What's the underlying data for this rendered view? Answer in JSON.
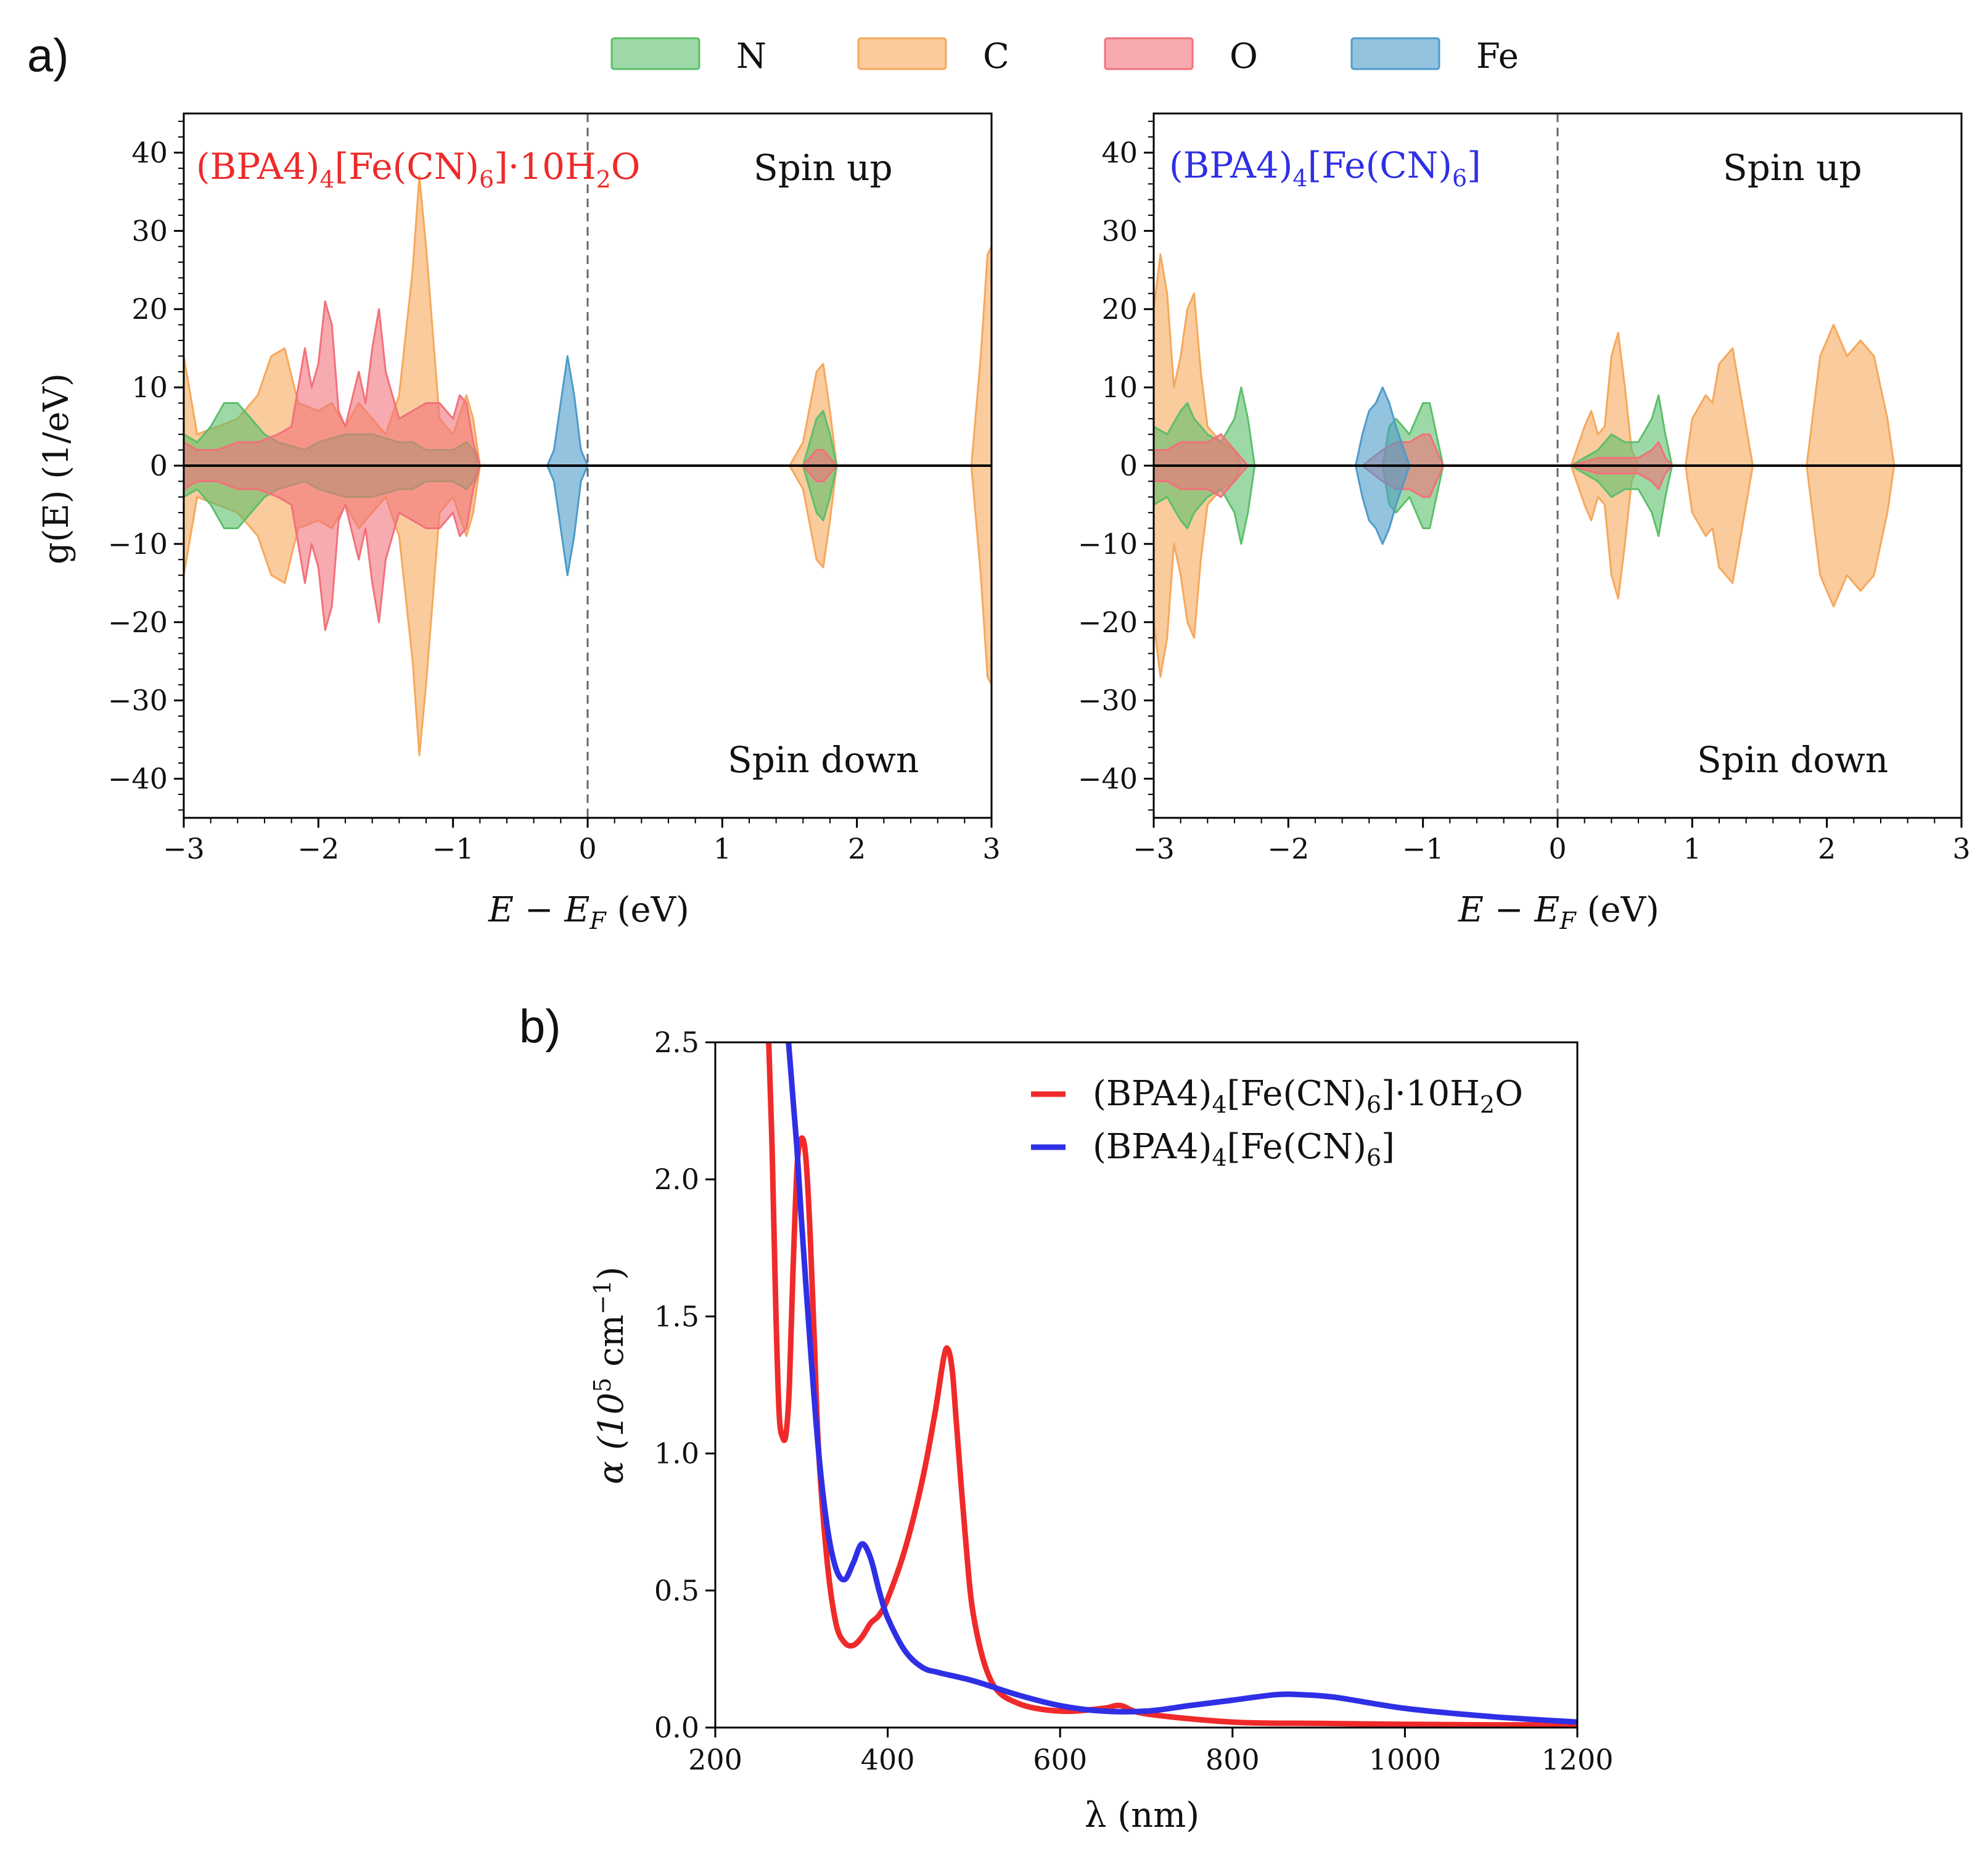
{
  "panel_a": {
    "letter": "a)"
  },
  "panel_b": {
    "letter": "b)"
  },
  "legend_top": [
    {
      "label": "N",
      "color": "#5cbf6b"
    },
    {
      "label": "C",
      "color": "#f5a85c"
    },
    {
      "label": "O",
      "color": "#f2717a"
    },
    {
      "label": "Fe",
      "color": "#4d9bc9"
    }
  ],
  "chart_data": [
    {
      "type": "area",
      "title": "(BPA4)4[Fe(CN)6]·10H2O",
      "title_color": "#ee2a2a",
      "title_parts": {
        "t1": "(BPA4)",
        "s1": "4",
        "t2": "[Fe(CN)",
        "s2": "6",
        "t3": "]·10H",
        "s3": "2",
        "t4": "O"
      },
      "xlabel": {
        "main": "E − E",
        "sub": "F",
        "unit": " (eV)"
      },
      "ylabel": "g(E) (1/eV)",
      "xlim": [
        -3,
        3
      ],
      "ylim": [
        -45,
        45
      ],
      "xticks": [
        -3,
        -2,
        -1,
        0,
        1,
        2,
        3
      ],
      "xtick_labels": [
        "−3",
        "−2",
        "−1",
        "0",
        "1",
        "2",
        "3"
      ],
      "yticks": [
        40,
        30,
        20,
        10,
        0,
        -10,
        -20,
        -30,
        -40
      ],
      "ytick_labels": [
        "40",
        "30",
        "20",
        "10",
        "0",
        "−10",
        "−20",
        "−30",
        "−40"
      ],
      "fermi_line": 0,
      "annotations": {
        "up": "Spin up",
        "down": "Spin down"
      },
      "series": [
        {
          "name": "C",
          "points": [
            [
              -3.0,
              14
            ],
            [
              -2.9,
              4
            ],
            [
              -2.75,
              5
            ],
            [
              -2.6,
              6
            ],
            [
              -2.45,
              9
            ],
            [
              -2.35,
              14
            ],
            [
              -2.25,
              15
            ],
            [
              -2.15,
              8
            ],
            [
              -2.0,
              7
            ],
            [
              -1.9,
              8
            ],
            [
              -1.8,
              5
            ],
            [
              -1.7,
              8
            ],
            [
              -1.6,
              6
            ],
            [
              -1.5,
              4
            ],
            [
              -1.4,
              9
            ],
            [
              -1.3,
              25
            ],
            [
              -1.25,
              37
            ],
            [
              -1.2,
              28
            ],
            [
              -1.1,
              6
            ],
            [
              -1.0,
              4
            ],
            [
              -0.9,
              9
            ],
            [
              -0.85,
              6
            ],
            [
              -0.8,
              0
            ],
            [
              1.5,
              0
            ],
            [
              1.6,
              3
            ],
            [
              1.7,
              12
            ],
            [
              1.75,
              13
            ],
            [
              1.8,
              7
            ],
            [
              1.85,
              0
            ],
            [
              2.85,
              0
            ],
            [
              2.92,
              14
            ],
            [
              2.97,
              27
            ],
            [
              3.0,
              28
            ]
          ]
        },
        {
          "name": "N",
          "points": [
            [
              -3.0,
              4
            ],
            [
              -2.9,
              3
            ],
            [
              -2.8,
              5
            ],
            [
              -2.7,
              8
            ],
            [
              -2.6,
              8
            ],
            [
              -2.5,
              6
            ],
            [
              -2.4,
              4
            ],
            [
              -2.3,
              3
            ],
            [
              -2.1,
              2
            ],
            [
              -2.0,
              3
            ],
            [
              -1.8,
              4
            ],
            [
              -1.6,
              4
            ],
            [
              -1.4,
              3
            ],
            [
              -1.3,
              3
            ],
            [
              -1.2,
              2
            ],
            [
              -1.0,
              2
            ],
            [
              -0.9,
              3
            ],
            [
              -0.85,
              2
            ],
            [
              -0.8,
              0
            ],
            [
              1.6,
              0
            ],
            [
              1.7,
              6
            ],
            [
              1.75,
              7
            ],
            [
              1.8,
              4
            ],
            [
              1.85,
              0
            ]
          ]
        },
        {
          "name": "O",
          "points": [
            [
              -3.0,
              3
            ],
            [
              -2.9,
              2
            ],
            [
              -2.75,
              2
            ],
            [
              -2.6,
              3
            ],
            [
              -2.45,
              3
            ],
            [
              -2.3,
              4
            ],
            [
              -2.2,
              5
            ],
            [
              -2.1,
              15
            ],
            [
              -2.05,
              10
            ],
            [
              -2.0,
              13
            ],
            [
              -1.95,
              21
            ],
            [
              -1.9,
              18
            ],
            [
              -1.85,
              7
            ],
            [
              -1.8,
              5
            ],
            [
              -1.7,
              12
            ],
            [
              -1.65,
              8
            ],
            [
              -1.6,
              15
            ],
            [
              -1.55,
              20
            ],
            [
              -1.5,
              12
            ],
            [
              -1.4,
              6
            ],
            [
              -1.3,
              7
            ],
            [
              -1.2,
              8
            ],
            [
              -1.1,
              8
            ],
            [
              -1.0,
              6
            ],
            [
              -0.95,
              9
            ],
            [
              -0.9,
              8
            ],
            [
              -0.85,
              3
            ],
            [
              -0.8,
              0
            ],
            [
              1.6,
              0
            ],
            [
              1.7,
              2
            ],
            [
              1.75,
              2
            ],
            [
              1.8,
              1
            ],
            [
              1.85,
              0
            ]
          ]
        },
        {
          "name": "Fe",
          "points": [
            [
              -0.3,
              0
            ],
            [
              -0.25,
              2
            ],
            [
              -0.2,
              8
            ],
            [
              -0.15,
              14
            ],
            [
              -0.1,
              9
            ],
            [
              -0.05,
              2
            ],
            [
              0.0,
              0
            ]
          ]
        }
      ]
    },
    {
      "type": "area",
      "title": "(BPA4)4[Fe(CN)6]",
      "title_color": "#2f2fe6",
      "title_parts": {
        "t1": "(BPA4)",
        "s1": "4",
        "t2": "[Fe(CN)",
        "s2": "6",
        "t3": "]",
        "s3": "",
        "t4": ""
      },
      "xlabel": {
        "main": "E − E",
        "sub": "F",
        "unit": " (eV)"
      },
      "ylabel": "",
      "xlim": [
        -3,
        3
      ],
      "ylim": [
        -45,
        45
      ],
      "xticks": [
        -3,
        -2,
        -1,
        0,
        1,
        2,
        3
      ],
      "xtick_labels": [
        "−3",
        "−2",
        "−1",
        "0",
        "1",
        "2",
        "3"
      ],
      "yticks": [
        40,
        30,
        20,
        10,
        0,
        -10,
        -20,
        -30,
        -40
      ],
      "ytick_labels": [
        "40",
        "30",
        "20",
        "10",
        "0",
        "−10",
        "−20",
        "−30",
        "−40"
      ],
      "fermi_line": 0,
      "annotations": {
        "up": "Spin up",
        "down": "Spin down"
      },
      "series": [
        {
          "name": "C",
          "points": [
            [
              -3.0,
              20
            ],
            [
              -2.95,
              27
            ],
            [
              -2.9,
              22
            ],
            [
              -2.85,
              10
            ],
            [
              -2.8,
              14
            ],
            [
              -2.75,
              20
            ],
            [
              -2.7,
              22
            ],
            [
              -2.65,
              12
            ],
            [
              -2.6,
              5
            ],
            [
              -2.5,
              3
            ],
            [
              -2.4,
              2
            ],
            [
              -2.35,
              0
            ],
            [
              0.1,
              0
            ],
            [
              0.2,
              5
            ],
            [
              0.25,
              7
            ],
            [
              0.3,
              4
            ],
            [
              0.35,
              5
            ],
            [
              0.4,
              14
            ],
            [
              0.45,
              17
            ],
            [
              0.5,
              10
            ],
            [
              0.55,
              2
            ],
            [
              0.6,
              0
            ],
            [
              0.95,
              0
            ],
            [
              1.0,
              6
            ],
            [
              1.1,
              9
            ],
            [
              1.15,
              8
            ],
            [
              1.2,
              13
            ],
            [
              1.3,
              15
            ],
            [
              1.35,
              10
            ],
            [
              1.45,
              0
            ],
            [
              1.85,
              0
            ],
            [
              1.95,
              14
            ],
            [
              2.05,
              18
            ],
            [
              2.15,
              14
            ],
            [
              2.25,
              16
            ],
            [
              2.35,
              14
            ],
            [
              2.45,
              6
            ],
            [
              2.5,
              0
            ]
          ]
        },
        {
          "name": "N",
          "points": [
            [
              -3.0,
              5
            ],
            [
              -2.9,
              4
            ],
            [
              -2.8,
              7
            ],
            [
              -2.75,
              8
            ],
            [
              -2.7,
              6
            ],
            [
              -2.6,
              4
            ],
            [
              -2.5,
              3
            ],
            [
              -2.4,
              6
            ],
            [
              -2.35,
              10
            ],
            [
              -2.3,
              6
            ],
            [
              -2.25,
              0
            ],
            [
              -1.3,
              0
            ],
            [
              -1.25,
              5
            ],
            [
              -1.2,
              6
            ],
            [
              -1.1,
              4
            ],
            [
              -1.0,
              8
            ],
            [
              -0.95,
              8
            ],
            [
              -0.85,
              0
            ],
            [
              0.1,
              0
            ],
            [
              0.3,
              2
            ],
            [
              0.4,
              4
            ],
            [
              0.5,
              3
            ],
            [
              0.6,
              3
            ],
            [
              0.7,
              6
            ],
            [
              0.75,
              9
            ],
            [
              0.8,
              4
            ],
            [
              0.85,
              0
            ]
          ]
        },
        {
          "name": "O",
          "points": [
            [
              -3.0,
              2
            ],
            [
              -2.9,
              2
            ],
            [
              -2.8,
              3
            ],
            [
              -2.7,
              3
            ],
            [
              -2.6,
              3
            ],
            [
              -2.5,
              4
            ],
            [
              -2.4,
              2
            ],
            [
              -2.3,
              0
            ],
            [
              -1.45,
              0
            ],
            [
              -1.3,
              2
            ],
            [
              -1.2,
              3
            ],
            [
              -1.1,
              3
            ],
            [
              -1.0,
              4
            ],
            [
              -0.95,
              4
            ],
            [
              -0.85,
              0
            ],
            [
              0.1,
              0
            ],
            [
              0.3,
              1
            ],
            [
              0.5,
              1
            ],
            [
              0.6,
              1
            ],
            [
              0.7,
              2
            ],
            [
              0.75,
              3
            ],
            [
              0.8,
              1
            ],
            [
              0.85,
              0
            ]
          ]
        },
        {
          "name": "Fe",
          "points": [
            [
              -1.5,
              0
            ],
            [
              -1.45,
              4
            ],
            [
              -1.4,
              7
            ],
            [
              -1.35,
              8
            ],
            [
              -1.3,
              10
            ],
            [
              -1.25,
              8
            ],
            [
              -1.2,
              5
            ],
            [
              -1.1,
              0
            ]
          ]
        }
      ]
    },
    {
      "type": "line",
      "xlabel": "λ (nm)",
      "ylabel": {
        "main": "α (10",
        "sup": "5",
        "mid": " cm",
        "sup2": "−1",
        "end": ")"
      },
      "xlim": [
        200,
        1200
      ],
      "ylim": [
        0,
        2.5
      ],
      "xticks": [
        200,
        400,
        600,
        800,
        1000,
        1200
      ],
      "xtick_labels": [
        "200",
        "400",
        "600",
        "800",
        "1000",
        "1200"
      ],
      "yticks": [
        0,
        0.5,
        1.0,
        1.5,
        2.0,
        2.5
      ],
      "ytick_labels": [
        "0.0",
        "0.5",
        "1.0",
        "1.5",
        "2.0",
        "2.5"
      ],
      "series": [
        {
          "name": "(BPA4)4[Fe(CN)6]·10H2O",
          "color": "#f02a2a",
          "legend_parts": {
            "t1": "(BPA4)",
            "s1": "4",
            "t2": "[Fe(CN)",
            "s2": "6",
            "t3": "]·10H",
            "s3": "2",
            "t4": "O"
          },
          "x": [
            262,
            266,
            270,
            274,
            278,
            282,
            286,
            290,
            295,
            300,
            305,
            310,
            315,
            320,
            330,
            340,
            350,
            360,
            370,
            380,
            390,
            400,
            420,
            440,
            455,
            465,
            470,
            475,
            480,
            490,
            500,
            520,
            550,
            600,
            650,
            670,
            700,
            800,
            900,
            1000,
            1100,
            1200
          ],
          "y": [
            2.5,
            2.1,
            1.55,
            1.15,
            1.06,
            1.07,
            1.25,
            1.65,
            2.05,
            2.15,
            2.08,
            1.8,
            1.4,
            1.0,
            0.6,
            0.38,
            0.31,
            0.3,
            0.33,
            0.38,
            0.41,
            0.47,
            0.65,
            0.9,
            1.15,
            1.35,
            1.38,
            1.3,
            1.1,
            0.7,
            0.4,
            0.17,
            0.09,
            0.06,
            0.07,
            0.08,
            0.05,
            0.02,
            0.015,
            0.012,
            0.01,
            0.01
          ]
        },
        {
          "name": "(BPA4)4[Fe(CN)6]",
          "color": "#2f2fe6",
          "legend_parts": {
            "t1": "(BPA4)",
            "s1": "4",
            "t2": "[Fe(CN)",
            "s2": "6",
            "t3": "]",
            "s3": "",
            "t4": ""
          },
          "x": [
            285,
            290,
            295,
            300,
            310,
            320,
            330,
            340,
            350,
            360,
            370,
            380,
            390,
            400,
            420,
            440,
            460,
            500,
            550,
            600,
            650,
            700,
            750,
            800,
            850,
            880,
            920,
            1000,
            1100,
            1200
          ],
          "y": [
            2.5,
            2.3,
            2.1,
            1.85,
            1.4,
            1.0,
            0.73,
            0.58,
            0.54,
            0.6,
            0.67,
            0.62,
            0.5,
            0.4,
            0.28,
            0.22,
            0.2,
            0.17,
            0.12,
            0.08,
            0.06,
            0.06,
            0.08,
            0.1,
            0.12,
            0.12,
            0.11,
            0.07,
            0.04,
            0.02
          ]
        }
      ]
    }
  ]
}
